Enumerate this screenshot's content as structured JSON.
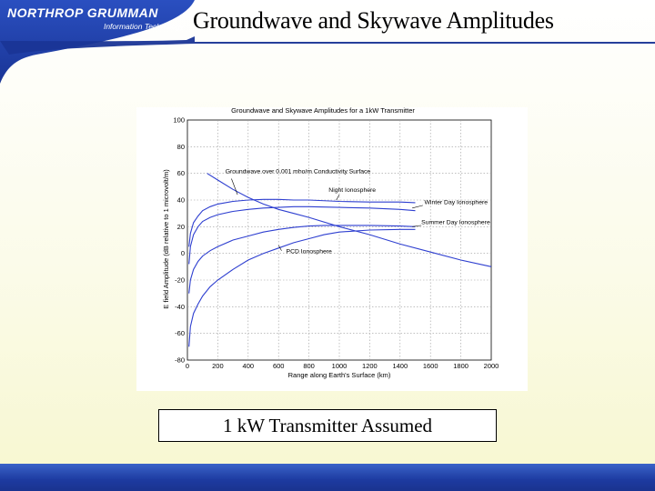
{
  "logo": {
    "main": "NORTHROP GRUMMAN",
    "sub": "Information Technology"
  },
  "slide_title": "Groundwave and Skywave Amplitudes",
  "caption": "1 kW Transmitter Assumed",
  "colors": {
    "header": "#1f3fa8",
    "line": "#2e3fd0",
    "grid": "#9a9a9a"
  },
  "chart_data": {
    "type": "line",
    "title": "Groundwave and Skywave Amplitudes for a 1kW Transmitter",
    "xlabel": "Range along Earth's Surface (km)",
    "ylabel": "E field Amplitude (dB relative to 1 microvolt/m)",
    "xlim": [
      0,
      2000
    ],
    "ylim": [
      -80,
      100
    ],
    "xticks": [
      0,
      200,
      400,
      600,
      800,
      1000,
      1200,
      1400,
      1600,
      1800,
      2000
    ],
    "yticks": [
      -80,
      -60,
      -40,
      -20,
      0,
      20,
      40,
      60,
      80,
      100
    ],
    "grid": true,
    "series": [
      {
        "name": "Groundwave over 0.001 mho/m Conductivity Surface",
        "x": [
          130,
          200,
          300,
          400,
          500,
          600,
          700,
          800,
          1000,
          1200,
          1400,
          1600,
          1800,
          2000
        ],
        "y": [
          60,
          55,
          48,
          42,
          37,
          33,
          30,
          27,
          20,
          14,
          7,
          1,
          -5,
          -10
        ]
      },
      {
        "name": "Night Ionosphere",
        "x": [
          10,
          20,
          40,
          70,
          100,
          150,
          200,
          300,
          400,
          500,
          600,
          700,
          800,
          1000,
          1200,
          1400,
          1500
        ],
        "y": [
          5,
          15,
          23,
          28,
          32,
          35,
          37,
          39,
          40,
          40.5,
          40.5,
          40,
          40,
          39,
          38.5,
          38.5,
          38
        ]
      },
      {
        "name": "Winter Day Ionosphere",
        "x": [
          10,
          20,
          40,
          70,
          100,
          150,
          200,
          300,
          400,
          500,
          600,
          700,
          800,
          1000,
          1200,
          1400,
          1500
        ],
        "y": [
          -8,
          5,
          14,
          20,
          24,
          27,
          29,
          31.5,
          33,
          34,
          34.5,
          35,
          35,
          34.5,
          34,
          33,
          32
        ]
      },
      {
        "name": "Summer Day Ionosphere",
        "x": [
          10,
          20,
          40,
          70,
          100,
          150,
          200,
          300,
          400,
          500,
          600,
          700,
          800,
          900,
          1000,
          1200,
          1400,
          1500
        ],
        "y": [
          -30,
          -20,
          -12,
          -6,
          -2,
          2,
          5,
          10,
          13,
          16,
          18,
          19.5,
          20.5,
          21,
          21,
          21,
          20.5,
          20
        ]
      },
      {
        "name": "PCD Ionosphere",
        "x": [
          10,
          20,
          40,
          70,
          100,
          150,
          200,
          300,
          400,
          500,
          600,
          700,
          800,
          900,
          1000,
          1200,
          1400,
          1500
        ],
        "y": [
          -70,
          -55,
          -45,
          -38,
          -32,
          -25,
          -20,
          -12,
          -5,
          0,
          4,
          8,
          11,
          14,
          16,
          17.5,
          18,
          18
        ]
      }
    ],
    "annotations": [
      {
        "text": "Groundwave over 0.001 mho/m Conductivity Surface",
        "x": 250,
        "y": 60
      },
      {
        "text": "Night Ionosphere",
        "x": 930,
        "y": 46
      },
      {
        "text": "Winter Day Ionosphere",
        "x": 1560,
        "y": 37
      },
      {
        "text": "Summer Day Ionosphere",
        "x": 1540,
        "y": 22
      },
      {
        "text": "PCD Ionosphere",
        "x": 650,
        "y": 0
      }
    ]
  }
}
